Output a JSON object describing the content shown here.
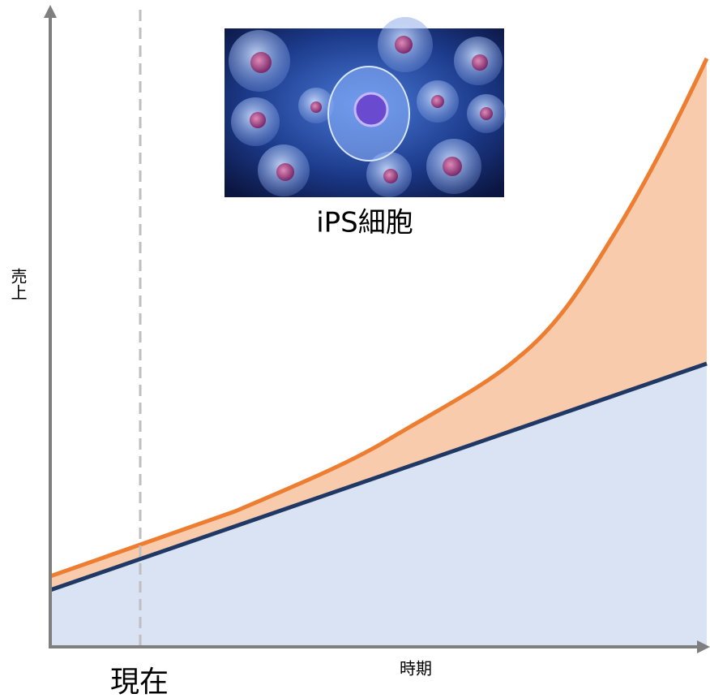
{
  "image": {
    "caption": "iPS細胞"
  },
  "axes": {
    "y_label": "売上",
    "x_label": "時期"
  },
  "marker": {
    "label": "現在"
  }
}
